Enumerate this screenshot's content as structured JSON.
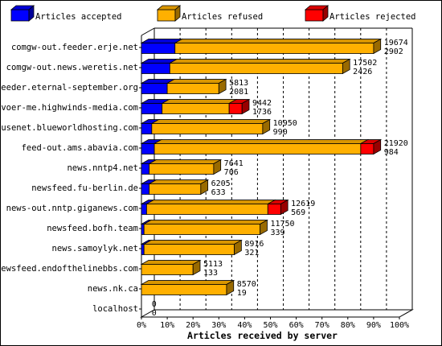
{
  "chart_data": {
    "type": "bar",
    "orientation": "horizontal",
    "stacked": true,
    "xlabel": "Articles received by server",
    "xlim": [
      0,
      100
    ],
    "x_ticks": [
      "0%",
      "10%",
      "20%",
      "30%",
      "40%",
      "50%",
      "60%",
      "70%",
      "80%",
      "90%",
      "100%"
    ],
    "legend_placement": "top",
    "series": [
      {
        "name": "Articles accepted",
        "color": "#0000ff"
      },
      {
        "name": "Articles refused",
        "color": "#ffb000"
      },
      {
        "name": "Articles rejected",
        "color": "#ff0000"
      }
    ],
    "categories": [
      "comgw-out.feeder.erje.net",
      "comgw-out.news.weretis.net",
      "feeder.eternal-september.org",
      "voer-me.highwinds-media.com",
      "usenet.blueworldhosting.com",
      "feed-out.ams.abavia.com",
      "news.nntp4.net",
      "newsfeed.fu-berlin.de",
      "news-out.nntp.giganews.com",
      "newsfeed.bofh.team",
      "news.samoylyk.net",
      "newsfeed.endofthelinebbs.com",
      "news.nk.ca",
      "localhost"
    ],
    "offered": [
      19674,
      17502,
      5813,
      9442,
      10950,
      21920,
      7641,
      6205,
      12619,
      11750,
      8916,
      5113,
      8570,
      0
    ],
    "accepted_counts": [
      2902,
      2426,
      2081,
      1736,
      990,
      984,
      706,
      633,
      569,
      339,
      321,
      133,
      19,
      0
    ],
    "accepted_pct": [
      13,
      11,
      10,
      8,
      4,
      5,
      3,
      3,
      2,
      1,
      1,
      0,
      0,
      0
    ],
    "refused_pct": [
      77,
      67,
      20,
      26,
      43,
      80,
      25,
      20,
      47,
      45,
      35,
      20,
      33,
      0
    ],
    "rejected_pct": [
      0,
      0,
      0,
      5,
      0,
      5,
      0,
      0,
      5,
      0,
      0,
      0,
      0,
      0
    ]
  }
}
